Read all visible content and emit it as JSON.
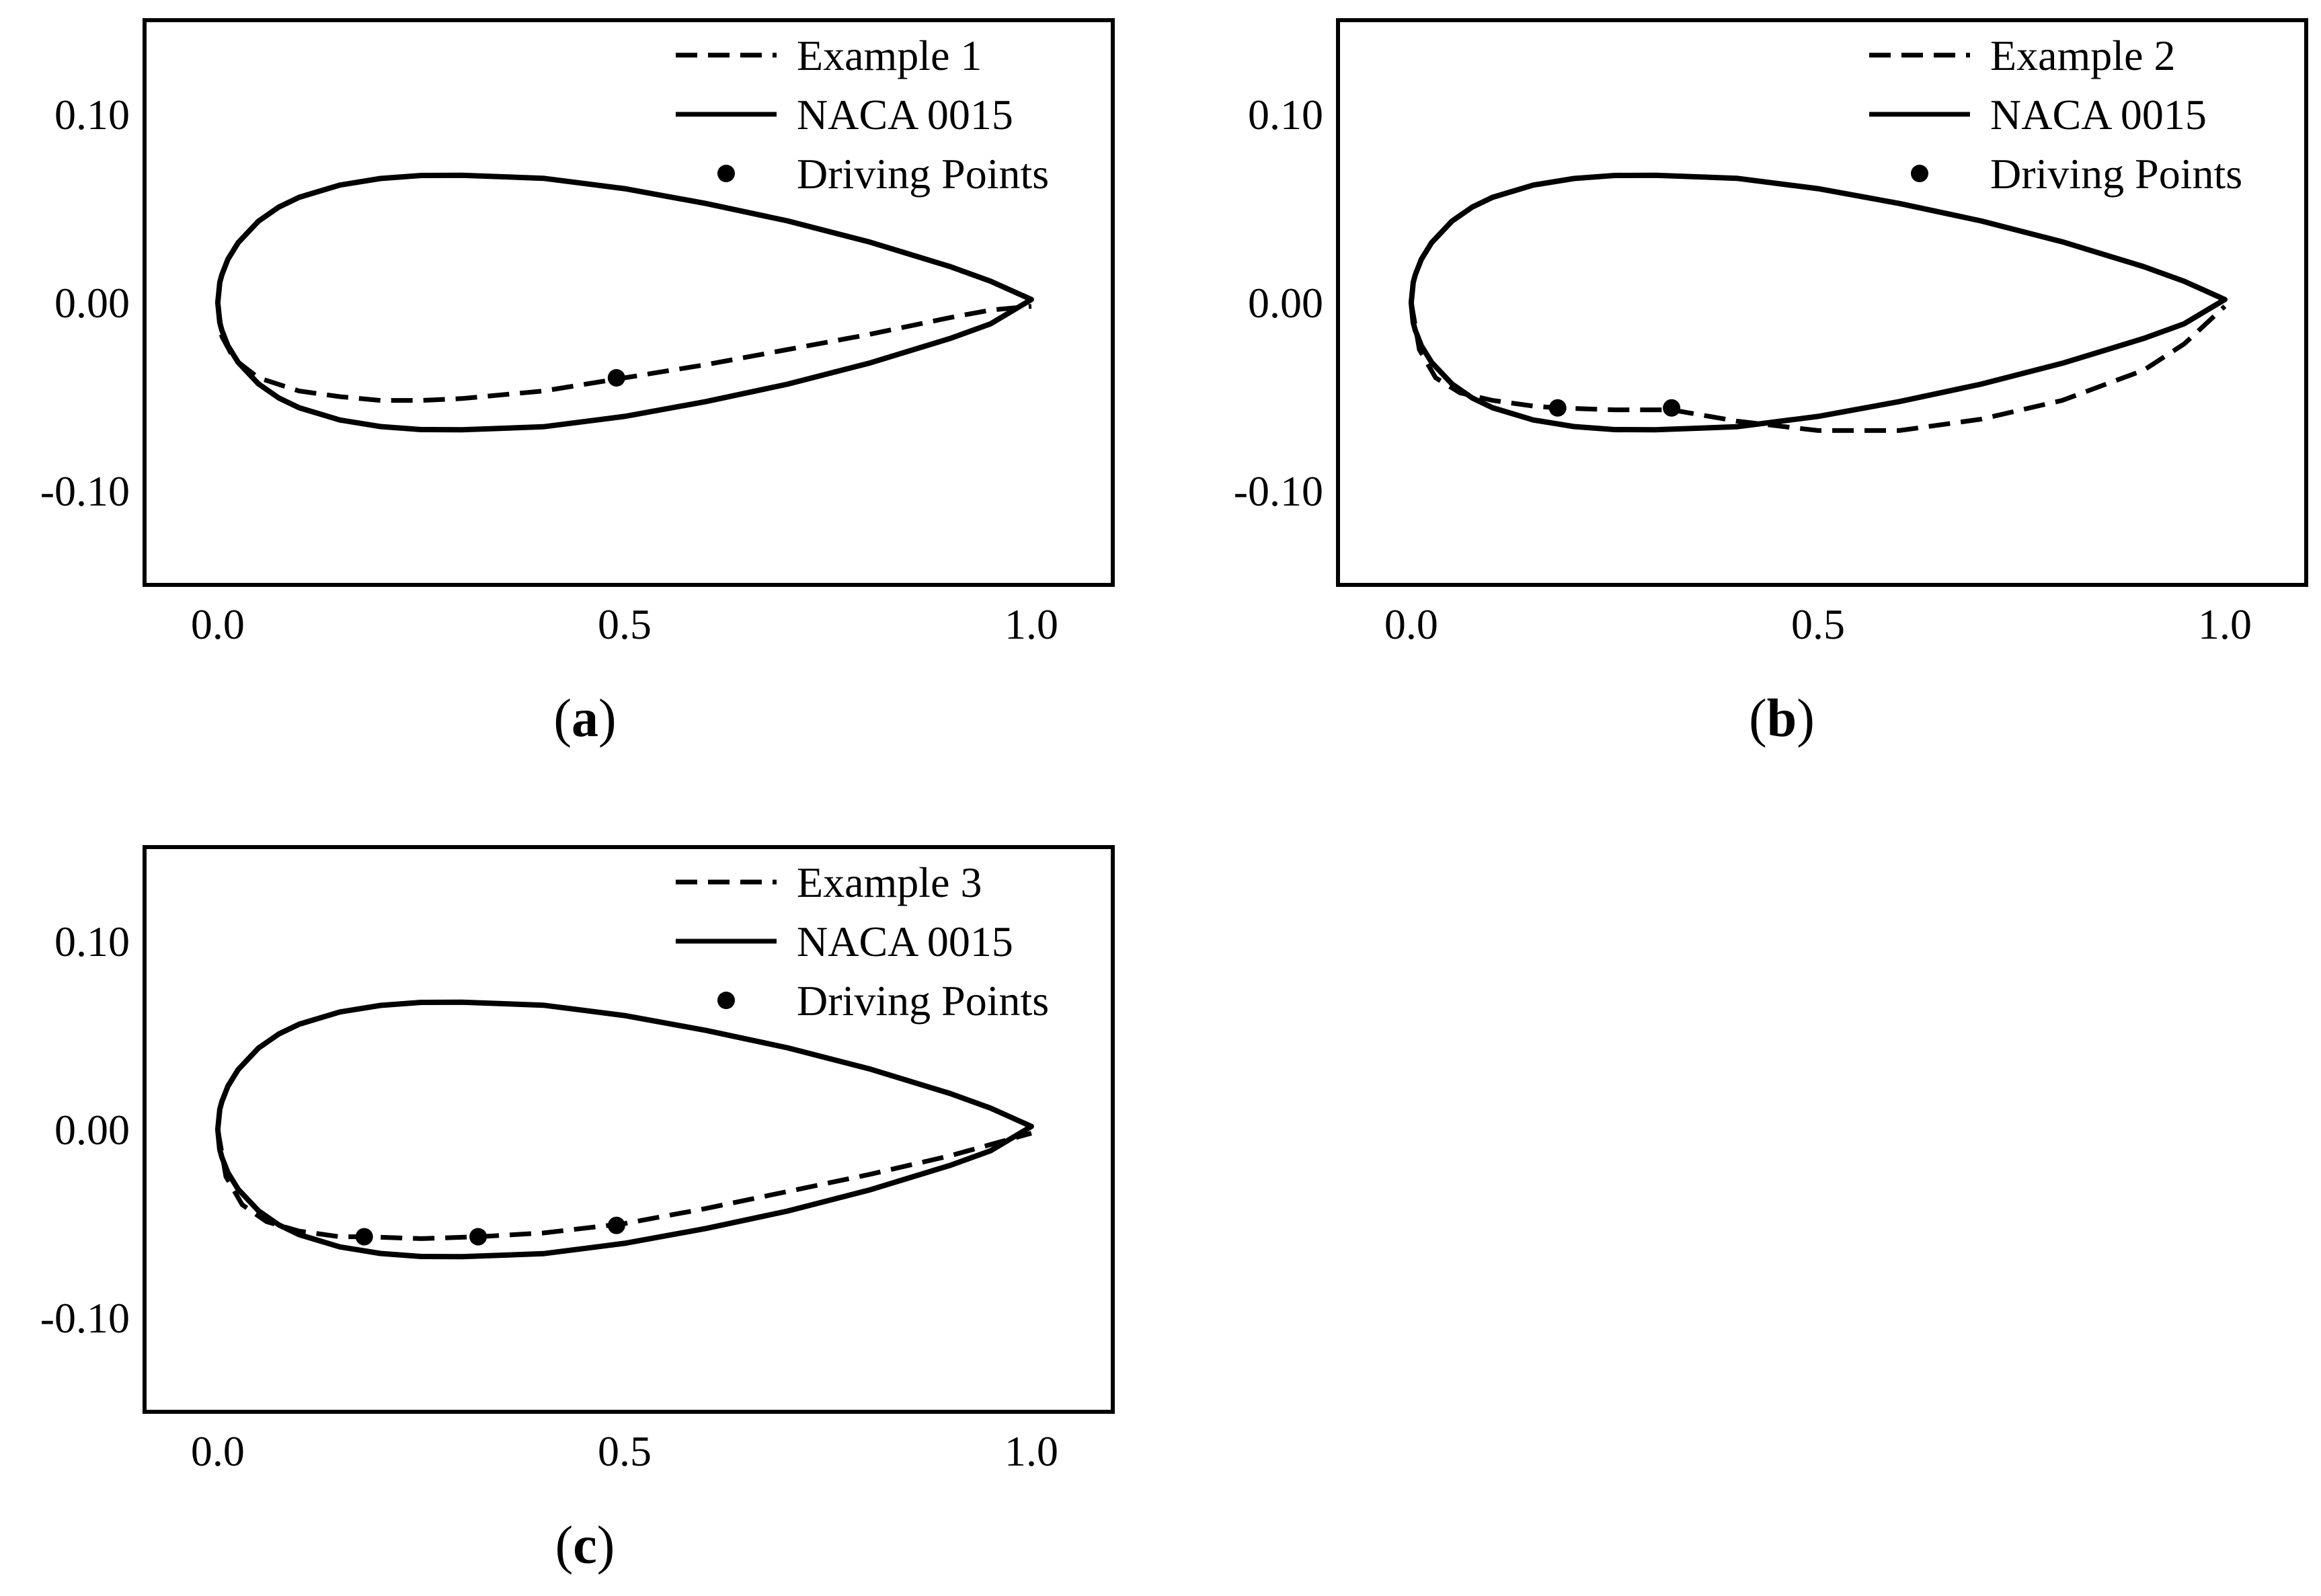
{
  "chart_data": [
    {
      "type": "line",
      "panel_label": "a",
      "xlim": [
        -0.09,
        1.1
      ],
      "ylim": [
        -0.15,
        0.15
      ],
      "x_ticks": [
        0.0,
        0.5,
        1.0
      ],
      "x_tick_labels": [
        "0.0",
        "0.5",
        "1.0"
      ],
      "y_ticks": [
        0.1,
        0.0,
        -0.1
      ],
      "y_tick_labels": [
        "0.10",
        "0.00",
        "-0.10"
      ],
      "legend": [
        "Example 1",
        "NACA 0015",
        "Driving Points"
      ],
      "legend_position": "top-right",
      "series": [
        {
          "name": "Example 1",
          "style": "dashed",
          "x": [
            0.0,
            0.005,
            0.02,
            0.05,
            0.1,
            0.15,
            0.2,
            0.25,
            0.3,
            0.4,
            0.5,
            0.6,
            0.7,
            0.8,
            0.9,
            0.95,
            1.0
          ],
          "y": [
            0.0,
            -0.018,
            -0.03,
            -0.04,
            -0.047,
            -0.05,
            -0.052,
            -0.052,
            -0.051,
            -0.047,
            -0.04,
            -0.033,
            -0.025,
            -0.017,
            -0.008,
            -0.004,
            -0.002
          ]
        },
        {
          "name": "Driving Points",
          "style": "points",
          "x": [
            0.49
          ],
          "y": [
            -0.04
          ]
        }
      ]
    },
    {
      "type": "line",
      "panel_label": "b",
      "xlim": [
        -0.09,
        1.1
      ],
      "ylim": [
        -0.15,
        0.15
      ],
      "x_ticks": [
        0.0,
        0.5,
        1.0
      ],
      "x_tick_labels": [
        "0.0",
        "0.5",
        "1.0"
      ],
      "y_ticks": [
        0.1,
        0.0,
        -0.1
      ],
      "y_tick_labels": [
        "0.10",
        "0.00",
        "-0.10"
      ],
      "legend": [
        "Example 2",
        "NACA 0015",
        "Driving Points"
      ],
      "legend_position": "top-right",
      "series": [
        {
          "name": "Example 2",
          "style": "dashed",
          "x": [
            0.0,
            0.01,
            0.03,
            0.06,
            0.1,
            0.15,
            0.18,
            0.25,
            0.32,
            0.4,
            0.5,
            0.6,
            0.7,
            0.8,
            0.9,
            0.95,
            1.0
          ],
          "y": [
            0.0,
            -0.025,
            -0.04,
            -0.048,
            -0.052,
            -0.055,
            -0.056,
            -0.057,
            -0.057,
            -0.063,
            -0.068,
            -0.068,
            -0.062,
            -0.052,
            -0.036,
            -0.022,
            -0.002
          ]
        },
        {
          "name": "Driving Points",
          "style": "points",
          "x": [
            0.18,
            0.32
          ],
          "y": [
            -0.056,
            -0.056
          ]
        }
      ]
    },
    {
      "type": "line",
      "panel_label": "c",
      "xlim": [
        -0.09,
        1.1
      ],
      "ylim": [
        -0.15,
        0.15
      ],
      "x_ticks": [
        0.0,
        0.5,
        1.0
      ],
      "x_tick_labels": [
        "0.0",
        "0.5",
        "1.0"
      ],
      "y_ticks": [
        0.1,
        0.0,
        -0.1
      ],
      "y_tick_labels": [
        "0.10",
        "0.00",
        "-0.10"
      ],
      "legend": [
        "Example 3",
        "NACA 0015",
        "Driving Points"
      ],
      "legend_position": "top-right",
      "series": [
        {
          "name": "Example 3",
          "style": "dashed",
          "x": [
            0.0,
            0.01,
            0.03,
            0.06,
            0.1,
            0.15,
            0.18,
            0.25,
            0.32,
            0.4,
            0.5,
            0.6,
            0.7,
            0.8,
            0.9,
            0.95,
            1.0
          ],
          "y": [
            0.0,
            -0.025,
            -0.04,
            -0.049,
            -0.054,
            -0.057,
            -0.057,
            -0.058,
            -0.057,
            -0.055,
            -0.05,
            -0.042,
            -0.033,
            -0.024,
            -0.014,
            -0.008,
            -0.002
          ]
        },
        {
          "name": "Driving Points",
          "style": "points",
          "x": [
            0.18,
            0.32,
            0.49
          ],
          "y": [
            -0.057,
            -0.057,
            -0.051
          ]
        }
      ]
    }
  ],
  "naca_series": {
    "name": "NACA 0015",
    "style": "solid",
    "x": [
      0.0,
      0.0025,
      0.005,
      0.0125,
      0.025,
      0.05,
      0.075,
      0.1,
      0.15,
      0.2,
      0.25,
      0.3,
      0.4,
      0.5,
      0.6,
      0.7,
      0.8,
      0.9,
      0.95,
      1.0
    ],
    "y_upper": [
      0.0,
      0.0107,
      0.0148,
      0.023,
      0.0318,
      0.0432,
      0.0507,
      0.0559,
      0.0624,
      0.0659,
      0.0675,
      0.0676,
      0.066,
      0.0605,
      0.0526,
      0.0434,
      0.0323,
      0.0191,
      0.0113,
      0.0016
    ]
  }
}
